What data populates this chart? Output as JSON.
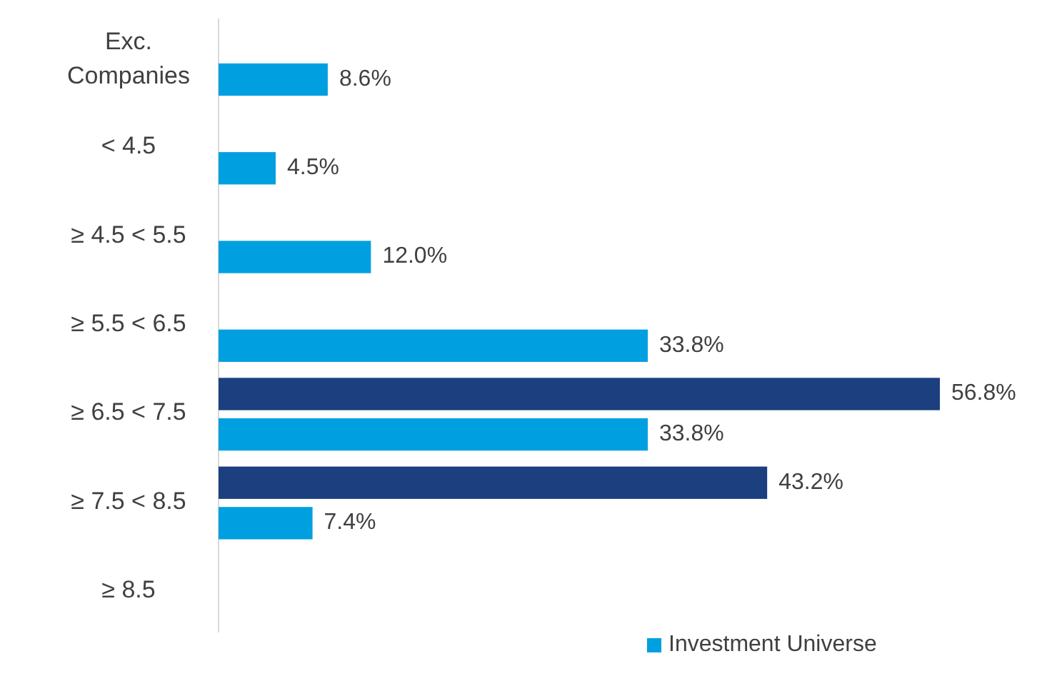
{
  "chart_data": {
    "type": "bar",
    "orientation": "horizontal",
    "categories": [
      "Exc. Companies",
      "< 4.5",
      "≥ 4.5 < 5.5",
      "≥ 5.5 < 6.5",
      "≥ 6.5 < 7.5",
      "≥ 7.5 < 8.5",
      "≥ 8.5"
    ],
    "series": [
      {
        "color": "#1b3f7f",
        "values": [
          null,
          null,
          null,
          null,
          56.8,
          43.2,
          null
        ],
        "value_labels": [
          null,
          null,
          null,
          null,
          "56.8%",
          "43.2%",
          null
        ]
      },
      {
        "name": "Investment Universe",
        "color": "#00a0e0",
        "values": [
          8.6,
          4.5,
          12.0,
          33.8,
          33.8,
          7.4,
          null
        ],
        "value_labels": [
          "8.6%",
          "4.5%",
          "12.0%",
          "33.8%",
          "33.8%",
          "7.4%",
          null
        ]
      }
    ],
    "legend": "bottom"
  }
}
